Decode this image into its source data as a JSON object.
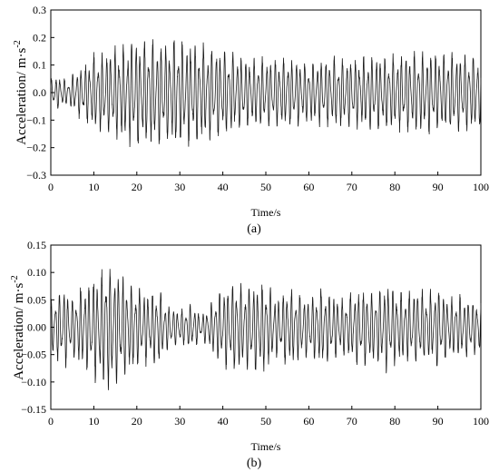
{
  "chart_data": [
    {
      "type": "line",
      "panel_label": "(a)",
      "xlabel": "Time/s",
      "ylabel": "Acceleration/ m·s",
      "ylabel_exponent": "-2",
      "xlim": [
        0,
        100
      ],
      "ylim": [
        -0.3,
        0.3
      ],
      "xticks": [
        0,
        10,
        20,
        30,
        40,
        50,
        60,
        70,
        80,
        90,
        100
      ],
      "xtick_labels": [
        "0",
        "10",
        "20",
        "30",
        "40",
        "50",
        "60",
        "70",
        "80",
        "90",
        "100"
      ],
      "yticks": [
        -0.3,
        -0.2,
        -0.1,
        0.0,
        0.1,
        0.2,
        0.3
      ],
      "ytick_labels": [
        "−0.3",
        "−0.2",
        "−0.1",
        "0.0",
        "0.1",
        "0.2",
        "0.3"
      ],
      "series_color": "#1a1a1a",
      "envelope": {
        "t": [
          0,
          2,
          4,
          6,
          8,
          10,
          12,
          15,
          18,
          20,
          22,
          25,
          28,
          30,
          32,
          35,
          38,
          40,
          45,
          50,
          55,
          60,
          65,
          70,
          75,
          80,
          85,
          90,
          95,
          100
        ],
        "amplitude": [
          0.05,
          0.06,
          0.04,
          0.08,
          0.1,
          0.13,
          0.14,
          0.16,
          0.18,
          0.19,
          0.19,
          0.18,
          0.19,
          0.19,
          0.18,
          0.17,
          0.16,
          0.15,
          0.13,
          0.12,
          0.12,
          0.11,
          0.12,
          0.12,
          0.13,
          0.13,
          0.14,
          0.14,
          0.14,
          0.13
        ]
      }
    },
    {
      "type": "line",
      "panel_label": "(b)",
      "xlabel": "Time/s",
      "ylabel": "Acceleration/ m·s",
      "ylabel_exponent": "-2",
      "xlim": [
        0,
        100
      ],
      "ylim": [
        -0.15,
        0.15
      ],
      "xticks": [
        0,
        10,
        20,
        30,
        40,
        50,
        60,
        70,
        80,
        90,
        100
      ],
      "xtick_labels": [
        "0",
        "10",
        "20",
        "30",
        "40",
        "50",
        "60",
        "70",
        "80",
        "90",
        "100"
      ],
      "yticks": [
        -0.15,
        -0.1,
        -0.05,
        0.0,
        0.05,
        0.1,
        0.15
      ],
      "ytick_labels": [
        "−0.15",
        "−0.10",
        "−0.05",
        "0.00",
        "0.05",
        "0.10",
        "0.15"
      ],
      "series_color": "#1a1a1a",
      "envelope": {
        "t": [
          0,
          3,
          5,
          8,
          10,
          12,
          13,
          15,
          17,
          20,
          23,
          25,
          27,
          30,
          33,
          35,
          38,
          40,
          43,
          45,
          48,
          50,
          53,
          55,
          58,
          60,
          63,
          65,
          68,
          70,
          73,
          75,
          78,
          80,
          83,
          85,
          88,
          90,
          93,
          95,
          98,
          100
        ],
        "amplitude": [
          0.05,
          0.07,
          0.05,
          0.08,
          0.09,
          0.1,
          0.12,
          0.1,
          0.09,
          0.07,
          0.06,
          0.07,
          0.04,
          0.03,
          0.04,
          0.02,
          0.05,
          0.07,
          0.08,
          0.07,
          0.08,
          0.08,
          0.05,
          0.07,
          0.06,
          0.05,
          0.07,
          0.06,
          0.05,
          0.06,
          0.07,
          0.06,
          0.08,
          0.07,
          0.06,
          0.07,
          0.06,
          0.07,
          0.05,
          0.06,
          0.05,
          0.05
        ]
      }
    }
  ]
}
